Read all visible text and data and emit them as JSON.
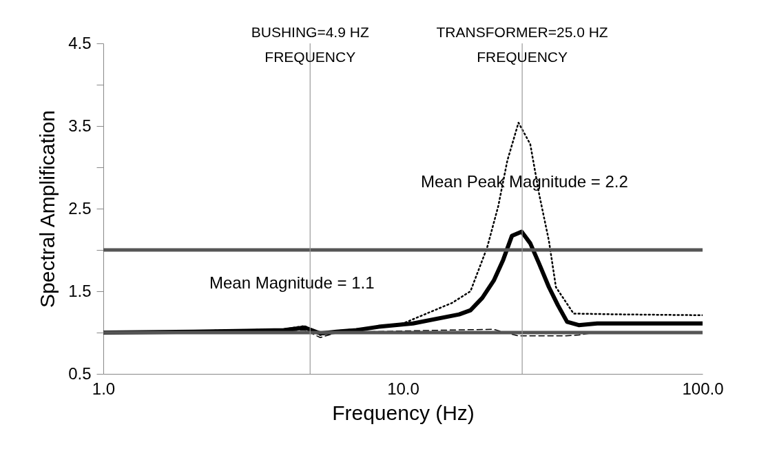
{
  "chart_data": {
    "type": "line",
    "xlabel": "Frequency (Hz)",
    "ylabel": "Spectral Amplification",
    "log": "x",
    "xlim": [
      1,
      100
    ],
    "xticks": [
      {
        "value": 1,
        "label": "1.0"
      },
      {
        "value": 10,
        "label": "10.0"
      },
      {
        "value": 100,
        "label": "100.0"
      }
    ],
    "ylim": [
      0.5,
      4.5
    ],
    "yticks": [
      0.5,
      {
        "value": 1,
        "label": null
      },
      1.5,
      {
        "value": 2,
        "label": null
      },
      2.5,
      {
        "value": 3,
        "label": null
      },
      3.5,
      {
        "value": 4,
        "label": null
      },
      4.5
    ],
    "grid": false,
    "marker": "none",
    "series": [
      {
        "color": "#000000",
        "line_style": "solid",
        "x": [
          1,
          2,
          3,
          4,
          4.7,
          5.3,
          6,
          7,
          8.3,
          10.8,
          15.4,
          16.8,
          18.4,
          20.1,
          21.6,
          23.1,
          24.9,
          26.6,
          28.5,
          30.7,
          32.9,
          35.3,
          38.6,
          44.5,
          100
        ],
        "values": [
          1.0,
          1.01,
          1.02,
          1.03,
          1.06,
          0.99,
          1.01,
          1.03,
          1.07,
          1.11,
          1.22,
          1.27,
          1.42,
          1.63,
          1.88,
          2.17,
          2.22,
          2.08,
          1.83,
          1.55,
          1.33,
          1.13,
          1.09,
          1.11,
          1.11
        ]
      },
      {
        "color": "#000000",
        "line_style": "dotted",
        "x": [
          1,
          2,
          3,
          4,
          4.7,
          5.3,
          6,
          8,
          10,
          14.6,
          16.8,
          19.1,
          20.8,
          22.3,
          24.3,
          26.6,
          28.5,
          30.7,
          32.4,
          37.1,
          53,
          100
        ],
        "values": [
          1.0,
          1.02,
          1.03,
          1.04,
          1.08,
          0.97,
          1.02,
          1.06,
          1.11,
          1.36,
          1.5,
          2.03,
          2.53,
          3.08,
          3.54,
          3.28,
          2.67,
          2.11,
          1.55,
          1.23,
          1.22,
          1.21
        ]
      },
      {
        "color": "#000000",
        "line_style": "dashed",
        "x": [
          1,
          3,
          4.7,
          5.3,
          6,
          10,
          20,
          22,
          24.3,
          35,
          38.6,
          45,
          100
        ],
        "values": [
          1.0,
          1.01,
          1.03,
          0.94,
          1.0,
          1.02,
          1.04,
          1.0,
          0.96,
          0.96,
          0.97,
          1.01,
          1.01
        ]
      }
    ],
    "ref_lines": [
      {
        "axis": "y",
        "value": 2,
        "color": "#555555"
      },
      {
        "axis": "y",
        "value": 1,
        "color": "#555555"
      },
      {
        "axis": "x",
        "value": 4.9,
        "color": "#999999",
        "label": "BUSHING=4.9 HZ\nFREQUENCY"
      },
      {
        "axis": "x",
        "value": 25,
        "color": "#999999",
        "label": "TRANSFORMER=25.0 HZ\nFREQUENCY"
      }
    ],
    "annotations": [
      "Mean Peak Magnitude  = 2.2",
      "Mean Magnitude  = 1.1"
    ]
  }
}
